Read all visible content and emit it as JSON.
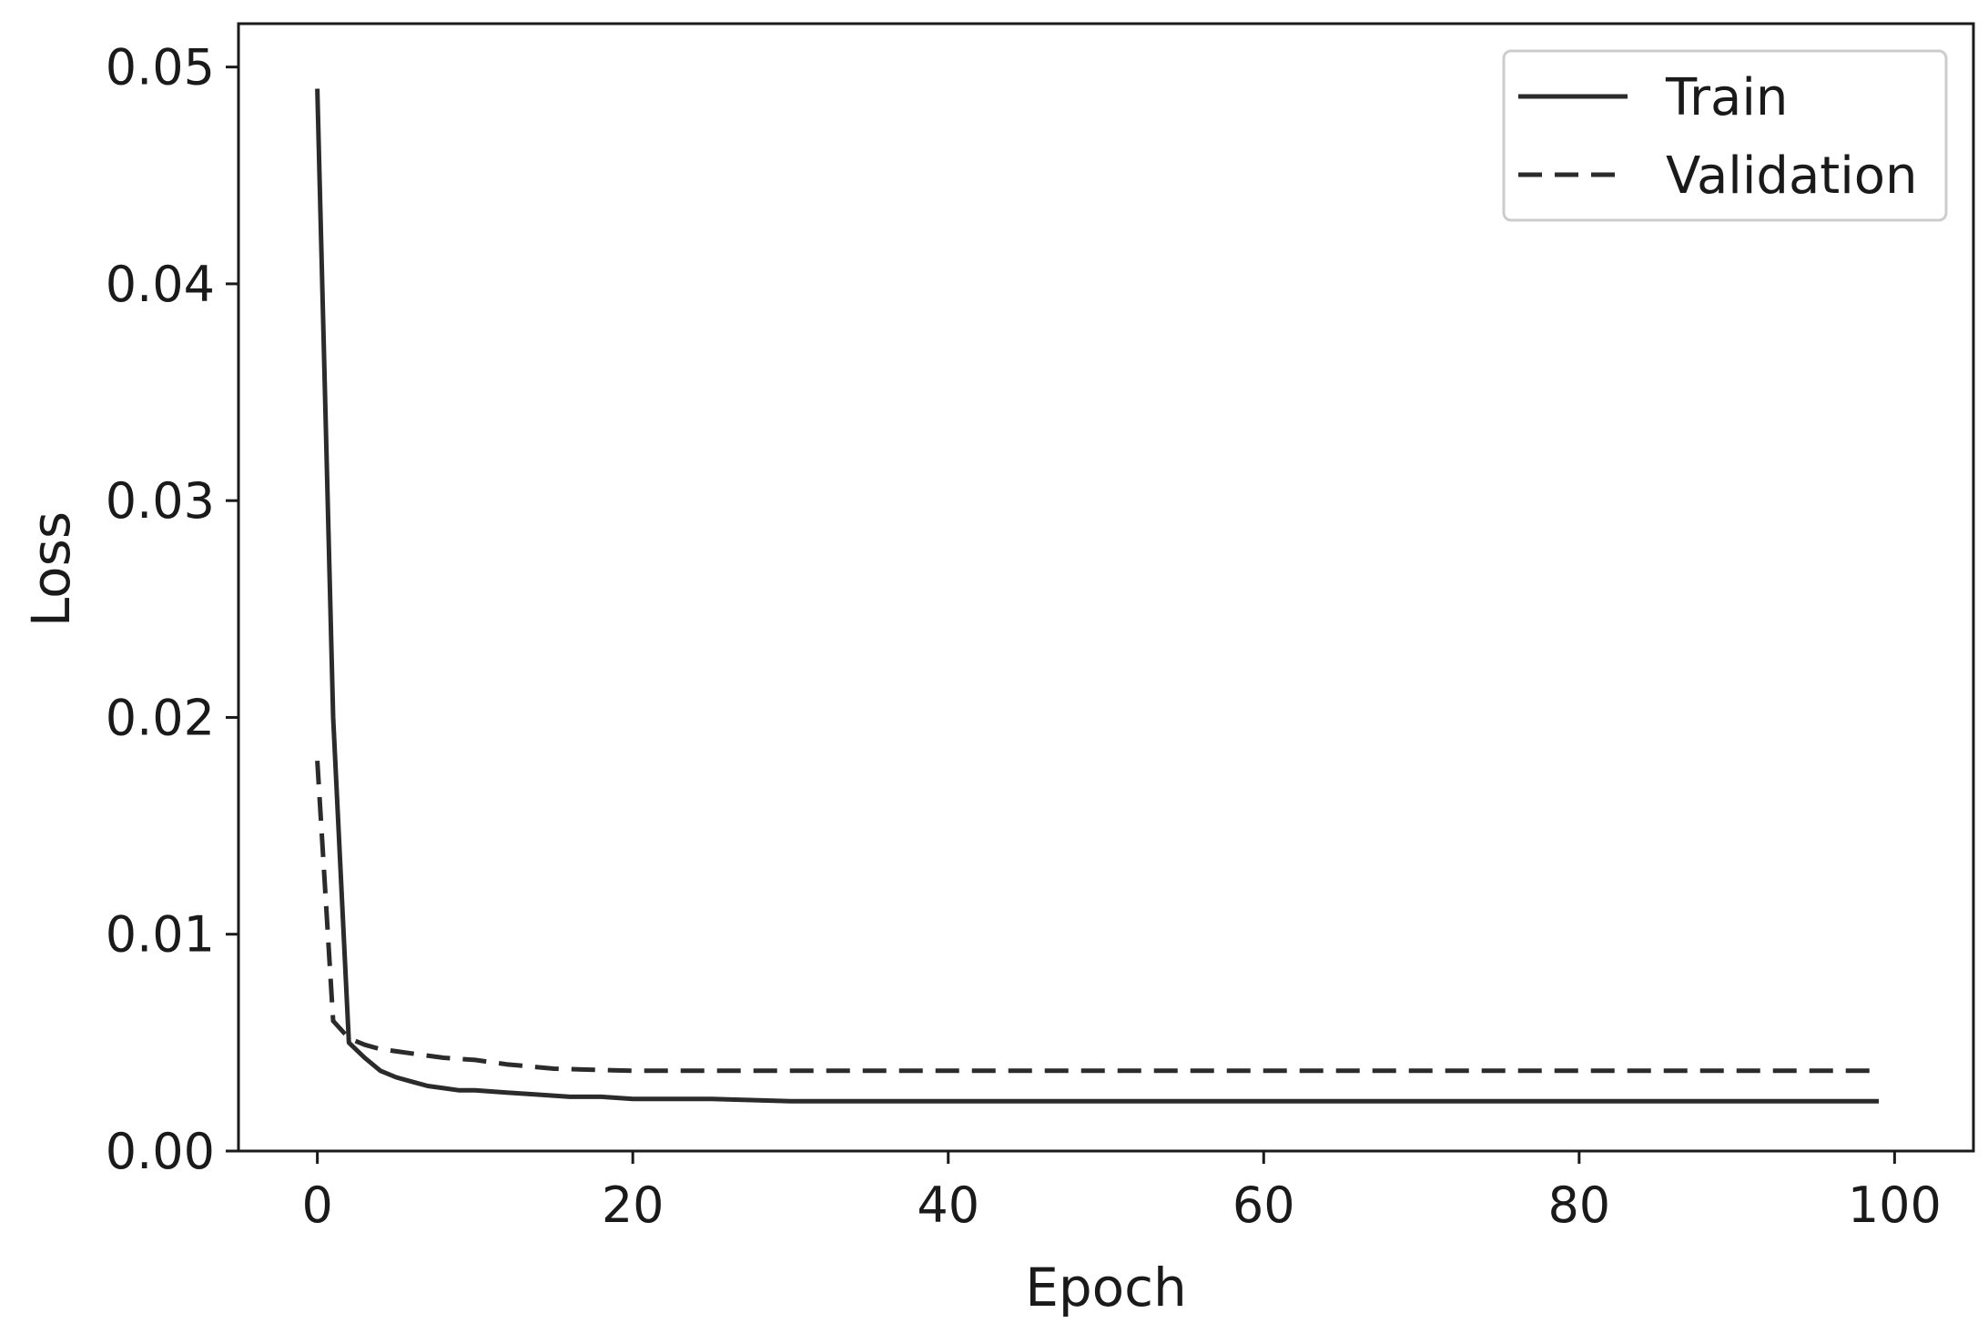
{
  "chart_data": {
    "type": "line",
    "title": "",
    "xlabel": "Epoch",
    "ylabel": "Loss",
    "xlim": [
      -5,
      105
    ],
    "ylim": [
      0.0,
      0.052
    ],
    "x_ticks": [
      0,
      20,
      40,
      60,
      80,
      100
    ],
    "x_tick_labels": [
      "0",
      "20",
      "40",
      "60",
      "80",
      "100"
    ],
    "y_ticks": [
      0.0,
      0.01,
      0.02,
      0.03,
      0.04,
      0.05
    ],
    "y_tick_labels": [
      "0.00",
      "0.01",
      "0.02",
      "0.03",
      "0.04",
      "0.05"
    ],
    "grid": false,
    "legend_position": "top-right",
    "series": [
      {
        "name": "Train",
        "style": "solid",
        "color": "#2b2b2b",
        "x": [
          0,
          1,
          2,
          3,
          4,
          5,
          6,
          7,
          8,
          9,
          10,
          12,
          14,
          16,
          18,
          20,
          25,
          30,
          40,
          50,
          60,
          70,
          80,
          90,
          99
        ],
        "y": [
          0.049,
          0.02,
          0.005,
          0.0043,
          0.0037,
          0.0034,
          0.0032,
          0.003,
          0.0029,
          0.0028,
          0.0028,
          0.0027,
          0.0026,
          0.0025,
          0.0025,
          0.0024,
          0.0024,
          0.0023,
          0.0023,
          0.0023,
          0.0023,
          0.0023,
          0.0023,
          0.0023,
          0.0023
        ]
      },
      {
        "name": "Validation",
        "style": "dashed",
        "color": "#2b2b2b",
        "x": [
          0,
          1,
          2,
          3,
          4,
          5,
          6,
          8,
          10,
          12,
          15,
          20,
          25,
          30,
          40,
          50,
          60,
          70,
          80,
          90,
          99
        ],
        "y": [
          0.018,
          0.006,
          0.0052,
          0.0049,
          0.0047,
          0.0046,
          0.0045,
          0.0043,
          0.0042,
          0.004,
          0.0038,
          0.0037,
          0.0037,
          0.0037,
          0.0037,
          0.0037,
          0.0037,
          0.0037,
          0.0037,
          0.0037,
          0.0037
        ]
      }
    ]
  }
}
